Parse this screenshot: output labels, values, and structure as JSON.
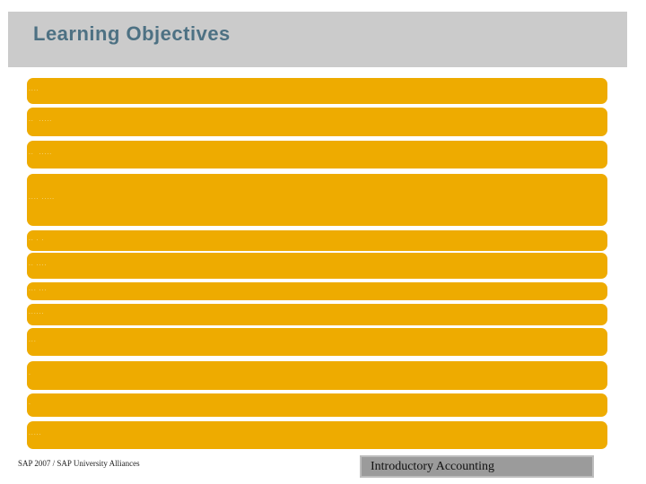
{
  "header": {
    "title": "Learning Objectives"
  },
  "objectives": {
    "note": "bullet text rendered too small to read; shown as faint glyph marks",
    "bars": [
      {
        "marks": "····"
      },
      {
        "marks": "··  ·····"
      },
      {
        "marks": "··  ·····"
      },
      {
        "marks": "···· ·····"
      },
      {
        "marks": "·· · ·"
      },
      {
        "marks": "·· ····"
      },
      {
        "marks": "··· ···"
      },
      {
        "marks": "······"
      },
      {
        "marks": "···"
      },
      {
        "marks": "·"
      },
      {
        "marks": "·"
      },
      {
        "marks": "·····"
      }
    ]
  },
  "footer": {
    "credit": "SAP 2007 / SAP University Alliances",
    "course": "Introductory Accounting"
  },
  "colors": {
    "accent_gold": "#eeab00",
    "header_gray": "#cbcbcb",
    "title_blue": "#4d7183",
    "badge_gray": "#9b9b9b"
  }
}
